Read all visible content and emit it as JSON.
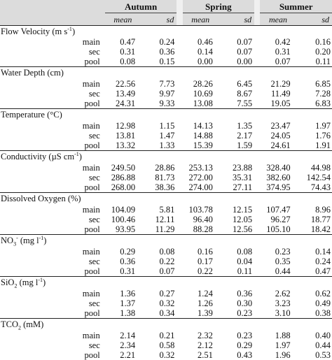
{
  "seasons": [
    "Autumn",
    "Spring",
    "Summer"
  ],
  "stat_labels": {
    "mean": "mean",
    "sd": "sd"
  },
  "sites": [
    "main",
    "sec",
    "pool"
  ],
  "variables": [
    {
      "name": "Flow Velocity (m s⁻¹)",
      "label_parts": [
        "Flow Velocity (m s",
        "-1",
        ")"
      ],
      "rows": [
        [
          "0.47",
          "0.24",
          "0.46",
          "0.07",
          "0.42",
          "0.16"
        ],
        [
          "0.31",
          "0.36",
          "0.14",
          "0.07",
          "0.31",
          "0.20"
        ],
        [
          "0.08",
          "0.15",
          "0.00",
          "0.00",
          "0.07",
          "0.11"
        ]
      ]
    },
    {
      "name": "Water Depth (cm)",
      "label_parts": [
        "Water Depth (cm)",
        "",
        ""
      ],
      "rows": [
        [
          "22.56",
          "7.73",
          "28.26",
          "6.45",
          "21.29",
          "6.85"
        ],
        [
          "13.49",
          "9.97",
          "10.69",
          "8.67",
          "11.49",
          "7.28"
        ],
        [
          "24.31",
          "9.33",
          "13.08",
          "7.55",
          "19.05",
          "6.83"
        ]
      ]
    },
    {
      "name": "Temperature (°C)",
      "label_parts": [
        "Temperature (°C)",
        "",
        ""
      ],
      "rows": [
        [
          "12.98",
          "1.15",
          "14.13",
          "1.35",
          "23.47",
          "1.97"
        ],
        [
          "13.81",
          "1.47",
          "14.88",
          "2.17",
          "24.05",
          "1.76"
        ],
        [
          "13.32",
          "1.33",
          "15.39",
          "1.59",
          "24.61",
          "1.91"
        ]
      ]
    },
    {
      "name": "Conductivity (µS cm⁻¹)",
      "label_parts": [
        "Conductivity (µS cm",
        "-1",
        ")"
      ],
      "rows": [
        [
          "249.50",
          "28.86",
          "253.13",
          "23.88",
          "328.40",
          "44.98"
        ],
        [
          "286.88",
          "81.73",
          "272.00",
          "35.31",
          "382.60",
          "142.54"
        ],
        [
          "268.00",
          "38.36",
          "274.00",
          "27.11",
          "374.95",
          "74.43"
        ]
      ]
    },
    {
      "name": "Dissolved Oxygen (%)",
      "label_parts": [
        "Dissolved Oxygen (%)",
        "",
        ""
      ],
      "rows": [
        [
          "104.09",
          "5.81",
          "103.78",
          "12.15",
          "107.47",
          "8.96"
        ],
        [
          "100.46",
          "12.11",
          "96.40",
          "12.05",
          "96.27",
          "18.77"
        ],
        [
          "93.95",
          "11.29",
          "88.28",
          "12.56",
          "105.10",
          "18.42"
        ]
      ]
    },
    {
      "name": "NO₃⁻ (mg l⁻¹)",
      "label_parts": [
        "NO",
        "3",
        "- (mg l",
        "-1",
        ")"
      ],
      "rows": [
        [
          "0.29",
          "0.08",
          "0.16",
          "0.08",
          "0.23",
          "0.14"
        ],
        [
          "0.36",
          "0.22",
          "0.17",
          "0.04",
          "0.35",
          "0.24"
        ],
        [
          "0.31",
          "0.07",
          "0.22",
          "0.11",
          "0.44",
          "0.47"
        ]
      ]
    },
    {
      "name": "SiO₂ (mg l⁻¹)",
      "label_parts": [
        "SiO",
        "2",
        " (mg l",
        "-1",
        ")"
      ],
      "rows": [
        [
          "1.36",
          "0.27",
          "1.24",
          "0.36",
          "2.62",
          "0.62"
        ],
        [
          "1.37",
          "0.32",
          "1.26",
          "0.30",
          "3.23",
          "0.49"
        ],
        [
          "1.38",
          "0.34",
          "1.39",
          "0.23",
          "3.10",
          "0.38"
        ]
      ]
    },
    {
      "name": "TCO₂ (mM)",
      "label_parts": [
        "TCO",
        "2",
        " (mM)"
      ],
      "rows": [
        [
          "2.14",
          "0.21",
          "2.32",
          "0.23",
          "1.88",
          "0.40"
        ],
        [
          "2.34",
          "0.58",
          "2.12",
          "0.29",
          "1.97",
          "0.44"
        ],
        [
          "2.21",
          "0.32",
          "2.51",
          "0.43",
          "1.96",
          "0.53"
        ]
      ]
    }
  ]
}
